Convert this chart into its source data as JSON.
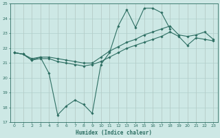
{
  "xlabel": "Humidex (Indice chaleur)",
  "background_color": "#cde8e5",
  "line_color": "#2d6e62",
  "grid_color": "#b0d0cc",
  "x_values": [
    0,
    1,
    2,
    3,
    4,
    5,
    6,
    7,
    8,
    9,
    10,
    11,
    12,
    13,
    14,
    15,
    16,
    17,
    18,
    19,
    20,
    21,
    22,
    23
  ],
  "line_volatile": [
    21.7,
    21.6,
    21.2,
    21.4,
    20.3,
    17.5,
    18.1,
    18.5,
    18.2,
    17.6,
    20.9,
    21.7,
    23.5,
    24.6,
    23.4,
    24.7,
    24.7,
    24.4,
    23.3,
    null,
    null,
    null,
    null,
    null
  ],
  "line_upper": [
    21.7,
    21.6,
    21.3,
    21.4,
    21.4,
    21.3,
    21.2,
    21.1,
    21.0,
    21.0,
    21.4,
    21.8,
    22.1,
    22.4,
    22.6,
    22.9,
    23.1,
    23.3,
    23.5,
    22.9,
    22.8,
    22.9,
    23.1,
    22.6
  ],
  "line_lower": [
    21.7,
    21.6,
    21.2,
    21.3,
    21.3,
    21.1,
    21.0,
    20.9,
    20.8,
    20.9,
    21.1,
    21.4,
    21.7,
    22.0,
    22.2,
    22.4,
    22.6,
    22.8,
    23.1,
    22.8,
    22.2,
    22.7,
    22.6,
    22.5
  ],
  "ylim": [
    17,
    25
  ],
  "xlim": [
    -0.5,
    23.5
  ],
  "yticks": [
    17,
    18,
    19,
    20,
    21,
    22,
    23,
    24,
    25
  ],
  "xticks": [
    0,
    1,
    2,
    3,
    4,
    5,
    6,
    7,
    8,
    9,
    10,
    11,
    12,
    13,
    14,
    15,
    16,
    17,
    18,
    19,
    20,
    21,
    22,
    23
  ]
}
